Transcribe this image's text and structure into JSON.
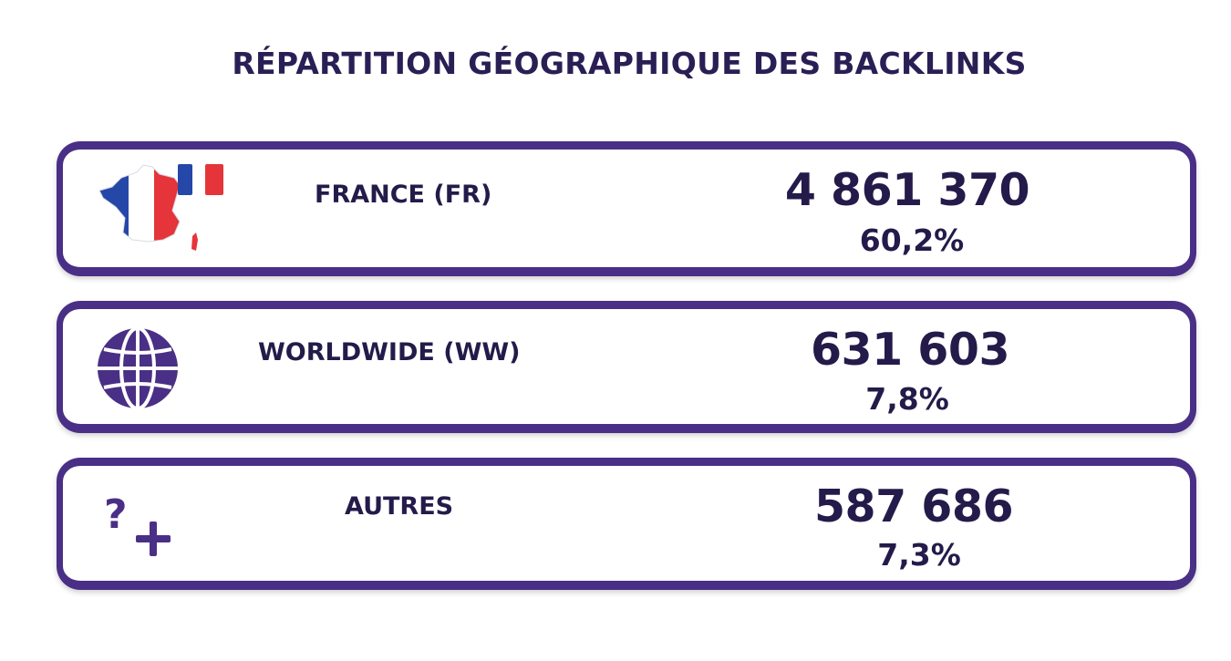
{
  "title": "RÉPARTITION GÉOGRAPHIQUE DES BACKLINKS",
  "colors": {
    "accent": "#4a2f86",
    "text": "#241b4a",
    "flag_blue": "#2447a8",
    "flag_red": "#e5343a"
  },
  "rows": [
    {
      "icon": "france-map-flag-icon",
      "label": "FRANCE (FR)",
      "value": "4 861 370",
      "percent": "60,2%"
    },
    {
      "icon": "globe-icon",
      "label": "WORLDWIDE (WW)",
      "value": "631 603",
      "percent": "7,8%"
    },
    {
      "icon": "question-plus-icon",
      "label": "AUTRES",
      "value": "587 686",
      "percent": "7,3%"
    }
  ]
}
